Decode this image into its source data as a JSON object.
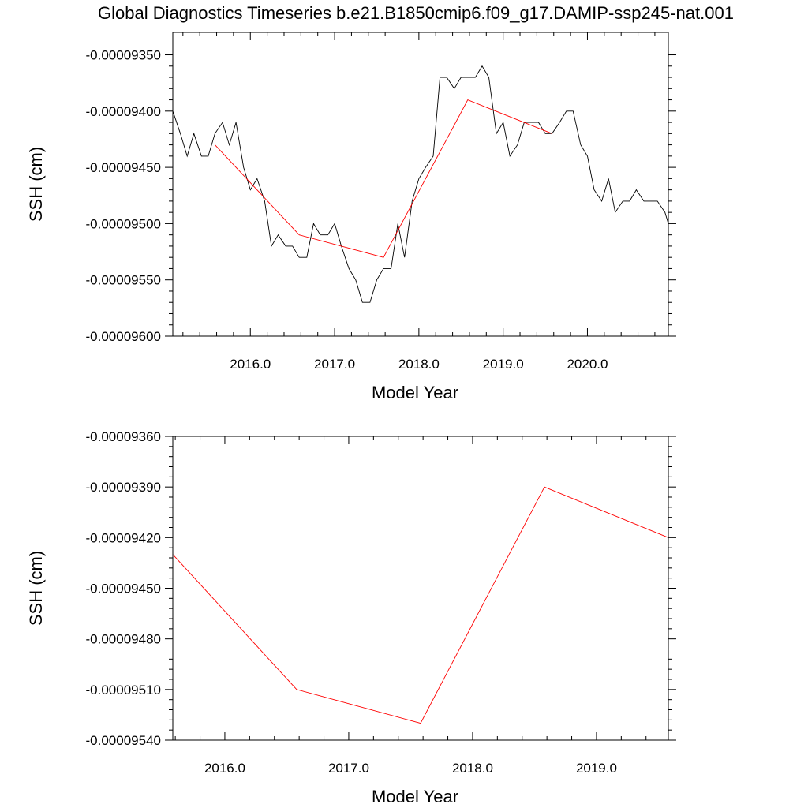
{
  "title": "Global Diagnostics Timeseries b.e21.B1850cmip6.f09_g17.DAMIP-ssp245-nat.001",
  "colors": {
    "monthly": "#000000",
    "annual": "#ff0000",
    "axis": "#000000",
    "background": "#ffffff"
  },
  "chart_data": [
    {
      "type": "line",
      "xlabel": "Model Year",
      "ylabel": "SSH (cm)",
      "xlim": [
        2015.08,
        2020.96
      ],
      "ylim": [
        -9.6e-05,
        -9.33e-05
      ],
      "xticks": [
        2016,
        2017,
        2018,
        2019,
        2020
      ],
      "xtick_labels": [
        "2016.0",
        "2017.0",
        "2018.0",
        "2019.0",
        "2020.0"
      ],
      "yticks": [
        -9.35e-05,
        -9.4e-05,
        -9.45e-05,
        -9.5e-05,
        -9.55e-05,
        -9.6e-05
      ],
      "ytick_labels": [
        "-0.00009350",
        "-0.00009400",
        "-0.00009450",
        "-0.00009500",
        "-0.00009550",
        "-0.00009600"
      ],
      "grid": false,
      "series": [
        {
          "color": "#000000",
          "x": [
            2015.08,
            2015.17,
            2015.25,
            2015.33,
            2015.42,
            2015.5,
            2015.58,
            2015.67,
            2015.75,
            2015.83,
            2015.92,
            2016.0,
            2016.08,
            2016.17,
            2016.25,
            2016.33,
            2016.42,
            2016.5,
            2016.58,
            2016.67,
            2016.75,
            2016.83,
            2016.92,
            2017.0,
            2017.08,
            2017.17,
            2017.25,
            2017.33,
            2017.42,
            2017.5,
            2017.58,
            2017.67,
            2017.75,
            2017.83,
            2017.92,
            2018.0,
            2018.08,
            2018.17,
            2018.25,
            2018.33,
            2018.42,
            2018.5,
            2018.58,
            2018.67,
            2018.75,
            2018.83,
            2018.92,
            2019.0,
            2019.08,
            2019.17,
            2019.25,
            2019.33,
            2019.42,
            2019.5,
            2019.58,
            2019.67,
            2019.75,
            2019.83,
            2019.92,
            2020.0,
            2020.08,
            2020.17,
            2020.25,
            2020.33,
            2020.42,
            2020.5,
            2020.58,
            2020.67,
            2020.75,
            2020.83,
            2020.92,
            2020.96
          ],
          "y": [
            -9.4e-05,
            -9.42e-05,
            -9.44e-05,
            -9.42e-05,
            -9.44e-05,
            -9.44e-05,
            -9.42e-05,
            -9.41e-05,
            -9.43e-05,
            -9.41e-05,
            -9.45e-05,
            -9.47e-05,
            -9.46e-05,
            -9.48e-05,
            -9.52e-05,
            -9.51e-05,
            -9.52e-05,
            -9.52e-05,
            -9.53e-05,
            -9.53e-05,
            -9.5e-05,
            -9.51e-05,
            -9.51e-05,
            -9.5e-05,
            -9.52e-05,
            -9.54e-05,
            -9.55e-05,
            -9.57e-05,
            -9.57e-05,
            -9.55e-05,
            -9.54e-05,
            -9.54e-05,
            -9.5e-05,
            -9.53e-05,
            -9.48e-05,
            -9.46e-05,
            -9.45e-05,
            -9.44e-05,
            -9.37e-05,
            -9.37e-05,
            -9.38e-05,
            -9.37e-05,
            -9.37e-05,
            -9.37e-05,
            -9.36e-05,
            -9.37e-05,
            -9.42e-05,
            -9.41e-05,
            -9.44e-05,
            -9.43e-05,
            -9.41e-05,
            -9.41e-05,
            -9.41e-05,
            -9.42e-05,
            -9.42e-05,
            -9.41e-05,
            -9.4e-05,
            -9.4e-05,
            -9.43e-05,
            -9.44e-05,
            -9.47e-05,
            -9.48e-05,
            -9.46e-05,
            -9.49e-05,
            -9.48e-05,
            -9.48e-05,
            -9.47e-05,
            -9.48e-05,
            -9.48e-05,
            -9.48e-05,
            -9.49e-05,
            -9.5e-05
          ]
        },
        {
          "color": "#ff0000",
          "x": [
            2015.58,
            2016.58,
            2017.58,
            2018.58,
            2019.58
          ],
          "y": [
            -9.43e-05,
            -9.51e-05,
            -9.53e-05,
            -9.39e-05,
            -9.42e-05
          ]
        }
      ]
    },
    {
      "type": "line",
      "xlabel": "Model Year",
      "ylabel": "SSH (cm)",
      "xlim": [
        2015.58,
        2019.58
      ],
      "ylim": [
        -9.54e-05,
        -9.36e-05
      ],
      "xticks": [
        2016,
        2017,
        2018,
        2019
      ],
      "xtick_labels": [
        "2016.0",
        "2017.0",
        "2018.0",
        "2019.0"
      ],
      "yticks": [
        -9.36e-05,
        -9.39e-05,
        -9.42e-05,
        -9.45e-05,
        -9.48e-05,
        -9.51e-05,
        -9.54e-05
      ],
      "ytick_labels": [
        "-0.00009360",
        "-0.00009390",
        "-0.00009420",
        "-0.00009450",
        "-0.00009480",
        "-0.00009510",
        "-0.00009540"
      ],
      "grid": false,
      "series": [
        {
          "color": "#ff0000",
          "x": [
            2015.58,
            2016.58,
            2017.58,
            2018.58,
            2019.58
          ],
          "y": [
            -9.43e-05,
            -9.51e-05,
            -9.53e-05,
            -9.39e-05,
            -9.42e-05
          ]
        }
      ]
    }
  ]
}
